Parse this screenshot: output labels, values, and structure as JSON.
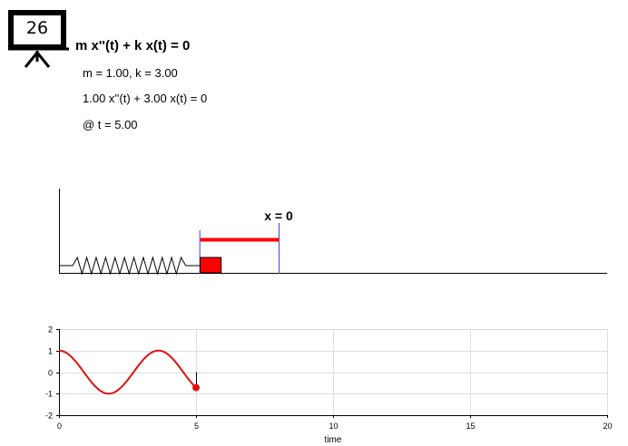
{
  "slide_number": "26",
  "equation": {
    "general": "m x''(t) + k x(t) = 0",
    "params": "m = 1.00, k = 3.00",
    "numeric": "1.00 x''(t) + 3.00 x(t) = 0",
    "time": "@ t = 5.00"
  },
  "spring_diagram": {
    "equilibrium_label": "x = 0",
    "displacement": 0.28,
    "colors": {
      "mass": "#ff0000",
      "marker": "#4040ff",
      "spring": "#000000"
    }
  },
  "chart_data": {
    "type": "line",
    "title": "",
    "xlabel": "time",
    "ylabel": "",
    "xlim": [
      0,
      20
    ],
    "ylim": [
      -2,
      2
    ],
    "xticks": [
      "0",
      "5",
      "10",
      "15",
      "20"
    ],
    "yticks": [
      "2",
      "1",
      "0",
      "-1",
      "-2"
    ],
    "grid": true,
    "series": [
      {
        "color": "#e01010",
        "function": "cos(sqrt(3) t)",
        "t_range": [
          0,
          5
        ],
        "current_point": {
          "x": 5.0,
          "y": -0.72
        }
      }
    ]
  }
}
